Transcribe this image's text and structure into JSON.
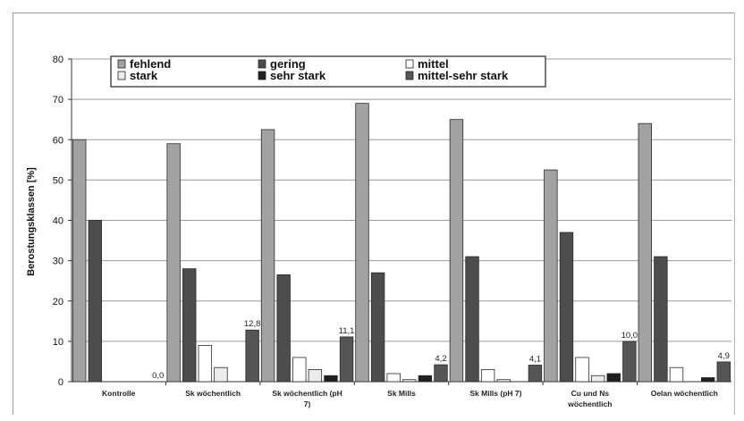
{
  "chart_data": {
    "type": "bar",
    "title": "",
    "xlabel": "",
    "ylabel": "Berostungsklassen [%]",
    "ylim": [
      0,
      80
    ],
    "yticks": [
      "0",
      "10",
      "20",
      "30",
      "40",
      "50",
      "60",
      "70",
      "80"
    ],
    "grid": true,
    "legend_position": "top-left",
    "categories": [
      [
        "Kontrolle"
      ],
      [
        "Sk wöchentlich"
      ],
      [
        "Sk wöchentlich (pH",
        "7)"
      ],
      [
        "Sk Mills"
      ],
      [
        "Sk Mills (pH 7)"
      ],
      [
        "Cu und Ns",
        "wöchentlich"
      ],
      [
        "Oelan wöchentlich"
      ]
    ],
    "series": [
      {
        "name": "fehlend",
        "color": "#a2a2a2",
        "values": [
          60,
          59,
          62.5,
          69,
          65,
          52.5,
          64
        ]
      },
      {
        "name": "gering",
        "color": "#4d4d4d",
        "values": [
          40,
          28,
          26.5,
          27,
          31,
          37,
          31
        ]
      },
      {
        "name": "mittel",
        "color": "#ffffff",
        "values": [
          0,
          9,
          6,
          2,
          3,
          6,
          3.5
        ]
      },
      {
        "name": "stark",
        "color": "#ececec",
        "values": [
          0,
          3.5,
          3,
          0.5,
          0.5,
          1.5,
          0
        ]
      },
      {
        "name": "sehr stark",
        "color": "#1f1f1f",
        "values": [
          0,
          0,
          1.5,
          1.5,
          0,
          2,
          1
        ]
      },
      {
        "name": "mittel-sehr stark",
        "color": "#555555",
        "values": [
          0.0,
          12.8,
          11.1,
          4.2,
          4.1,
          10.0,
          4.9
        ]
      }
    ],
    "data_labels": [
      "0,0",
      "12,8",
      "11,1",
      "4,2",
      "4,1",
      "10,0",
      "4,9"
    ],
    "legend_order": [
      [
        "fehlend",
        "gering",
        "mittel"
      ],
      [
        "stark",
        "sehr stark",
        "mittel-sehr stark"
      ]
    ]
  }
}
